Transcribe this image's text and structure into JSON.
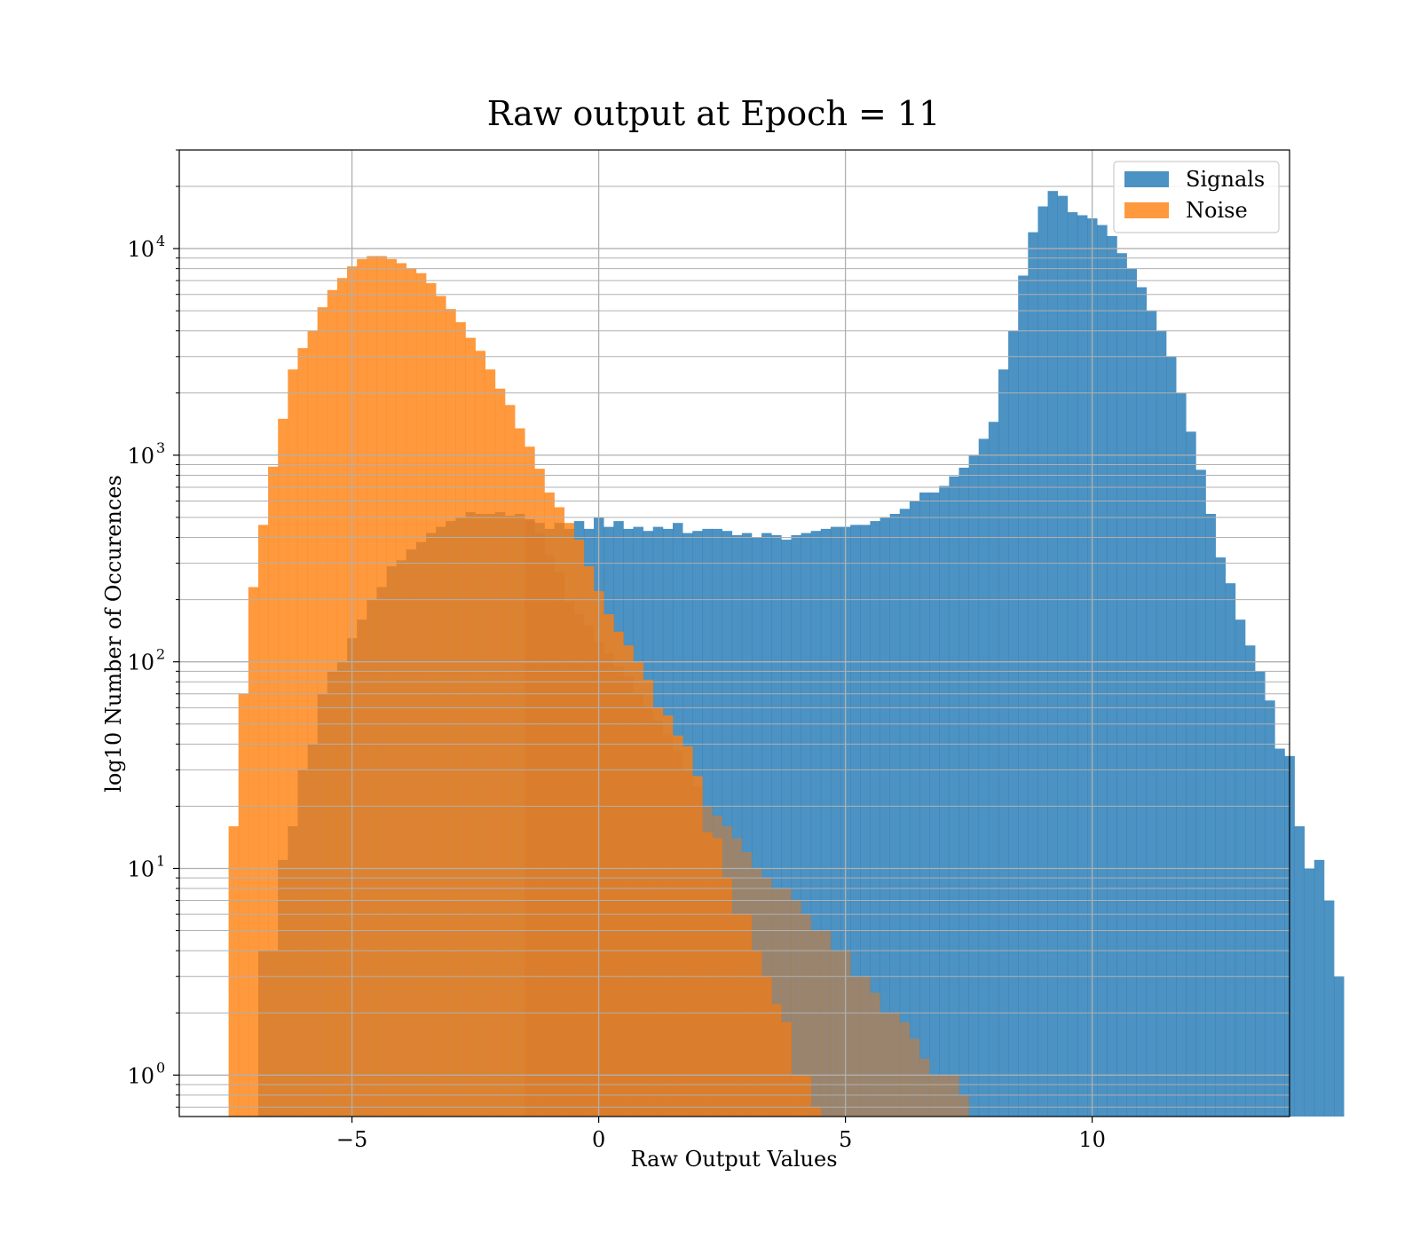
{
  "chart_data": {
    "type": "bar",
    "title": "Raw output at Epoch = 11",
    "xlabel": "Raw Output Values",
    "ylabel": "log10 Number of Occurences",
    "xlim": [
      -8.5,
      14.0
    ],
    "ylim": [
      0.63,
      30000
    ],
    "yscale": "log",
    "x_ticks": [
      {
        "value": -5,
        "label": "−5"
      },
      {
        "value": 0,
        "label": "0"
      },
      {
        "value": 5,
        "label": "5"
      },
      {
        "value": 10,
        "label": "10"
      }
    ],
    "y_ticks": [
      {
        "value": 1,
        "base": "10",
        "exp": "0"
      },
      {
        "value": 10,
        "base": "10",
        "exp": "1"
      },
      {
        "value": 100,
        "base": "10",
        "exp": "2"
      },
      {
        "value": 1000,
        "base": "10",
        "exp": "3"
      },
      {
        "value": 10000,
        "base": "10",
        "exp": "4"
      }
    ],
    "grid": true,
    "grid_minor_y": true,
    "legend_position": "top-right",
    "series": [
      {
        "name": "Signals",
        "color": "#1f77b4",
        "opacity": 0.8,
        "bin_start": -6.9,
        "bin_width": 0.2,
        "values": [
          4,
          4,
          11,
          16,
          30,
          40,
          70,
          90,
          100,
          130,
          160,
          200,
          230,
          290,
          310,
          350,
          380,
          420,
          450,
          480,
          500,
          530,
          520,
          520,
          530,
          510,
          520,
          490,
          470,
          440,
          470,
          440,
          480,
          440,
          500,
          450,
          480,
          440,
          450,
          430,
          450,
          440,
          470,
          420,
          430,
          440,
          440,
          430,
          410,
          420,
          400,
          420,
          410,
          390,
          410,
          420,
          430,
          440,
          450,
          450,
          460,
          460,
          480,
          500,
          520,
          550,
          600,
          660,
          660,
          710,
          790,
          870,
          1000,
          1200,
          1450,
          2600,
          4000,
          7400,
          12000,
          16000,
          19000,
          18000,
          15000,
          14500,
          14000,
          13000,
          11500,
          9500,
          8000,
          6500,
          5000,
          4000,
          3000,
          2000,
          1300,
          850,
          520,
          320,
          240,
          160,
          120,
          90,
          65,
          38,
          35,
          16,
          10,
          11,
          7,
          3,
          0
        ]
      },
      {
        "name": "Noise",
        "color": "#ff7f0e",
        "opacity": 0.8,
        "bin_start": -7.5,
        "bin_width": 0.2,
        "values": [
          16,
          70,
          230,
          460,
          880,
          1500,
          2600,
          3300,
          4000,
          5200,
          6300,
          7200,
          8200,
          8900,
          9200,
          9200,
          8900,
          8500,
          8000,
          7600,
          6800,
          5900,
          5100,
          4400,
          3700,
          3200,
          2600,
          2100,
          1750,
          1350,
          1100,
          860,
          660,
          560,
          470,
          390,
          290,
          220,
          170,
          140,
          120,
          100,
          82,
          60,
          55,
          44,
          39,
          28,
          15,
          14,
          9,
          6,
          6,
          4,
          3,
          2.2,
          1.8,
          1,
          1,
          0.7
        ]
      }
    ],
    "overlay_bins": {
      "start": -1.5,
      "width": 0.2,
      "values": [
        480,
        420,
        330,
        270,
        195,
        170,
        150,
        125,
        110,
        95,
        85,
        70,
        60,
        52,
        44,
        37,
        30,
        25,
        20,
        18,
        16,
        14,
        12,
        10,
        9,
        8,
        8,
        7,
        6,
        5,
        5,
        4,
        4,
        3,
        3,
        2.5,
        2,
        2,
        1.8,
        1.5,
        1.2,
        1,
        1,
        1,
        0.8
      ]
    }
  }
}
